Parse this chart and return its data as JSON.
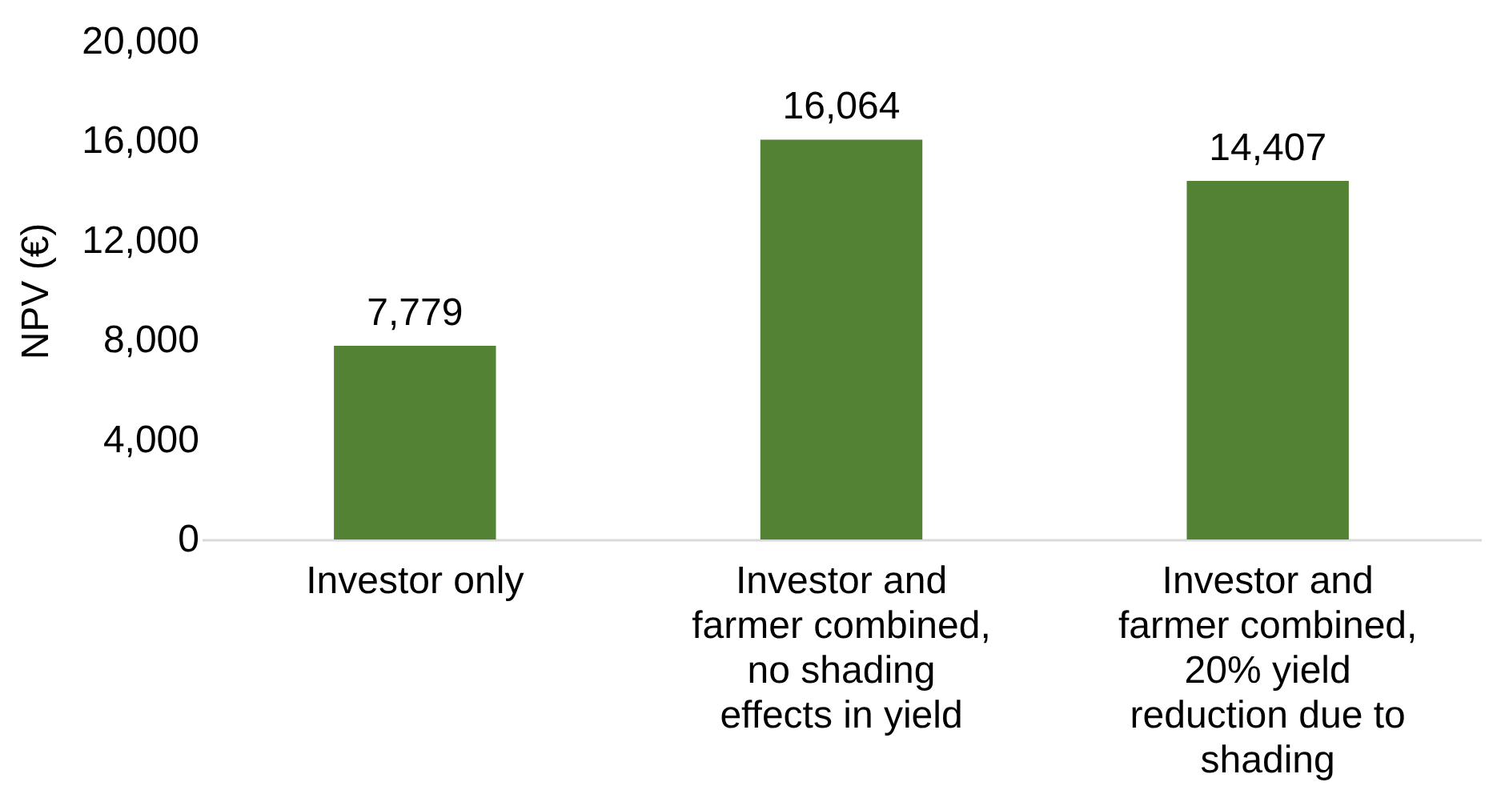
{
  "chart_data": {
    "type": "bar",
    "ylabel": "NPV (€)",
    "categories": [
      "Investor only",
      "Investor and farmer combined, no shading effects in yield",
      "Investor and farmer combined, 20% yield reduction due to shading"
    ],
    "values": [
      7779,
      16064,
      14407
    ],
    "value_labels": [
      "7,779",
      "16,064",
      "14,407"
    ],
    "color": "#548235",
    "ylim": [
      0,
      20000
    ],
    "yticks": [
      {
        "value": 0,
        "label": "0"
      },
      {
        "value": 4000,
        "label": "4,000"
      },
      {
        "value": 8000,
        "label": "8,000"
      },
      {
        "value": 12000,
        "label": "12,000"
      },
      {
        "value": 16000,
        "label": "16,000"
      },
      {
        "value": 20000,
        "label": "20,000"
      }
    ],
    "grid": false
  }
}
